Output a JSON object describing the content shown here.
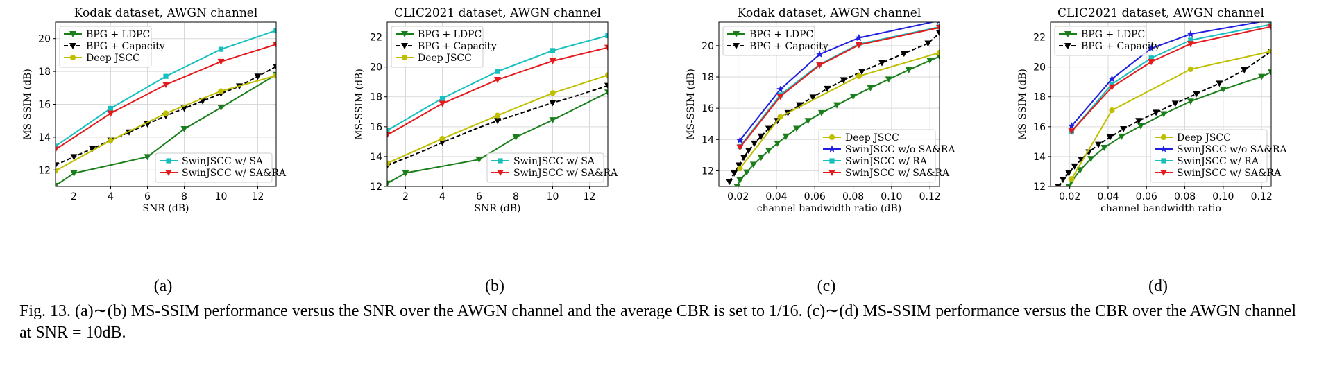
{
  "figure": {
    "caption": "Fig. 13.  (a)∼(b) MS-SSIM performance versus the SNR over the AWGN channel and the average CBR is set to 1/16. (c)∼(d) MS-SSIM performance versus the CBR over the AWGN channel at SNR = 10dB."
  },
  "colors": {
    "bpg_ldpc": "#1a7f1a",
    "bpg_capacity": "#000000",
    "deep_jscc": "#bfbf00",
    "swin_sa": "#17bfbf",
    "swin_sara": "#e41a1c",
    "swin_nosara": "#1f1fe0",
    "swin_ra": "#17bfbf"
  },
  "chart_data": [
    {
      "type": "line",
      "panel_label": "(a)",
      "title": "Kodak dataset, AWGN channel",
      "xlabel": "SNR (dB)",
      "ylabel": "MS-SSIM (dB)",
      "xlim": [
        1,
        13
      ],
      "ylim": [
        11,
        21
      ],
      "xticks": [
        2,
        4,
        6,
        8,
        10,
        12
      ],
      "yticks": [
        12,
        14,
        16,
        18,
        20
      ],
      "grid": true,
      "legend": [
        {
          "position": "upper-left",
          "entries": [
            "BPG + LDPC",
            "BPG + Capacity",
            "Deep JSCC"
          ]
        },
        {
          "position": "lower-right",
          "entries": [
            "SwinJSCC w/ SA",
            "SwinJSCC w/ SA&RA"
          ]
        }
      ],
      "series": [
        {
          "name": "BPG + LDPC",
          "color_key": "bpg_ldpc",
          "marker": "tri_down",
          "dash": false,
          "markevery": 1,
          "x": [
            1,
            2,
            6,
            8,
            10,
            13
          ],
          "y": [
            11.05,
            11.8,
            12.8,
            14.5,
            15.8,
            17.8
          ]
        },
        {
          "name": "BPG + Capacity",
          "color_key": "bpg_capacity",
          "marker": "tri_down",
          "dash": true,
          "markevery": 1,
          "x": [
            1,
            2,
            3,
            4,
            5,
            6,
            7,
            8,
            9,
            10,
            11,
            12,
            13
          ],
          "y": [
            12.3,
            12.8,
            13.3,
            13.8,
            14.3,
            14.8,
            15.3,
            15.75,
            16.2,
            16.65,
            17.1,
            17.7,
            18.3
          ]
        },
        {
          "name": "Deep JSCC",
          "color_key": "deep_jscc",
          "marker": "circle",
          "dash": false,
          "markevery": 1,
          "x": [
            1,
            4,
            7,
            10,
            13
          ],
          "y": [
            11.95,
            13.8,
            15.45,
            16.8,
            17.75
          ]
        },
        {
          "name": "SwinJSCC w/ SA",
          "color_key": "swin_sa",
          "marker": "square",
          "dash": false,
          "markevery": 1,
          "x": [
            1,
            4,
            7,
            10,
            13
          ],
          "y": [
            13.45,
            15.75,
            17.7,
            19.35,
            20.5
          ]
        },
        {
          "name": "SwinJSCC w/ SA&RA",
          "color_key": "swin_sara",
          "marker": "tri_down",
          "dash": false,
          "markevery": 1,
          "x": [
            1,
            4,
            7,
            10,
            13
          ],
          "y": [
            13.25,
            15.45,
            17.2,
            18.6,
            19.65
          ]
        }
      ]
    },
    {
      "type": "line",
      "panel_label": "(b)",
      "title": "CLIC2021 dataset, AWGN channel",
      "xlabel": "SNR (dB)",
      "ylabel": "MS-SSIM (dB)",
      "xlim": [
        1,
        13
      ],
      "ylim": [
        12,
        23
      ],
      "xticks": [
        2,
        4,
        6,
        8,
        10,
        12
      ],
      "yticks": [
        12,
        14,
        16,
        18,
        20,
        22
      ],
      "grid": true,
      "legend": [
        {
          "position": "upper-left",
          "entries": [
            "BPG + LDPC",
            "BPG + Capacity",
            "Deep JSCC"
          ]
        },
        {
          "position": "lower-right",
          "entries": [
            "SwinJSCC w/ SA",
            "SwinJSCC w/ SA&RA"
          ]
        }
      ],
      "series": [
        {
          "name": "BPG + LDPC",
          "color_key": "bpg_ldpc",
          "marker": "tri_down",
          "dash": false,
          "markevery": 1,
          "x": [
            1,
            2,
            6,
            8,
            10,
            13
          ],
          "y": [
            12.2,
            12.9,
            13.8,
            15.3,
            16.45,
            18.3
          ]
        },
        {
          "name": "BPG + Capacity",
          "color_key": "bpg_capacity",
          "marker": "tri_down",
          "dash": true,
          "markevery": 3,
          "x": [
            1,
            2,
            3,
            4,
            5,
            6,
            7,
            8,
            9,
            10,
            11,
            12,
            13
          ],
          "y": [
            13.4,
            13.9,
            14.4,
            14.95,
            15.45,
            15.95,
            16.4,
            16.8,
            17.2,
            17.6,
            17.95,
            18.35,
            18.75
          ]
        },
        {
          "name": "Deep JSCC",
          "color_key": "deep_jscc",
          "marker": "circle",
          "dash": false,
          "markevery": 1,
          "x": [
            1,
            4,
            7,
            10,
            13
          ],
          "y": [
            13.55,
            15.2,
            16.75,
            18.25,
            19.45
          ]
        },
        {
          "name": "SwinJSCC w/ SA",
          "color_key": "swin_sa",
          "marker": "square",
          "dash": false,
          "markevery": 1,
          "x": [
            1,
            4,
            7,
            10,
            13
          ],
          "y": [
            15.75,
            17.9,
            19.7,
            21.1,
            22.1
          ]
        },
        {
          "name": "SwinJSCC w/ SA&RA",
          "color_key": "swin_sara",
          "marker": "tri_down",
          "dash": false,
          "markevery": 1,
          "x": [
            1,
            4,
            7,
            10,
            13
          ],
          "y": [
            15.45,
            17.55,
            19.15,
            20.4,
            21.3
          ]
        }
      ]
    },
    {
      "type": "line",
      "panel_label": "(c)",
      "title": "Kodak dataset, AWGN channel",
      "xlabel": "channel bandwidth ratio (dB)",
      "ylabel": "MS-SSIM (dB)",
      "xlim": [
        0.01,
        0.125
      ],
      "ylim": [
        11,
        21.5
      ],
      "xticks": [
        0.02,
        0.04,
        0.06,
        0.08,
        0.1,
        0.12
      ],
      "xtick_labels": [
        "0.02",
        "0.04",
        "0.06",
        "0.08",
        "0.10",
        "0.12"
      ],
      "yticks": [
        12,
        14,
        16,
        18,
        20
      ],
      "grid": true,
      "legend": [
        {
          "position": "upper-left",
          "entries": [
            "BPG + LDPC",
            "BPG + Capacity"
          ]
        },
        {
          "position": "lower-right",
          "entries": [
            "Deep JSCC",
            "SwinJSCC w/o SA&RA",
            "SwinJSCC w/ RA",
            "SwinJSCC w/ SA&RA"
          ]
        }
      ],
      "series": [
        {
          "name": "BPG + LDPC",
          "color_key": "bpg_ldpc",
          "marker": "tri_down",
          "dash": false,
          "markevery": 1,
          "x": [
            0.0195,
            0.021,
            0.0245,
            0.028,
            0.032,
            0.036,
            0.0405,
            0.045,
            0.0505,
            0.0565,
            0.0635,
            0.0715,
            0.08,
            0.089,
            0.0985,
            0.109,
            0.12,
            0.125
          ],
          "y": [
            11.0,
            11.4,
            11.9,
            12.4,
            12.85,
            13.3,
            13.75,
            14.2,
            14.7,
            15.2,
            15.7,
            16.2,
            16.75,
            17.3,
            17.85,
            18.45,
            19.05,
            19.3
          ]
        },
        {
          "name": "BPG + Capacity",
          "color_key": "bpg_capacity",
          "marker": "tri_down",
          "dash": true,
          "markevery": 1,
          "x": [
            0.0155,
            0.018,
            0.0205,
            0.023,
            0.0255,
            0.0285,
            0.032,
            0.036,
            0.0405,
            0.046,
            0.052,
            0.059,
            0.0665,
            0.075,
            0.0845,
            0.095,
            0.1065,
            0.119,
            0.125
          ],
          "y": [
            11.3,
            11.85,
            12.35,
            12.85,
            13.3,
            13.75,
            14.2,
            14.7,
            15.2,
            15.7,
            16.2,
            16.7,
            17.25,
            17.8,
            18.35,
            18.9,
            19.5,
            20.15,
            20.8
          ]
        },
        {
          "name": "Deep JSCC",
          "color_key": "deep_jscc",
          "marker": "circle",
          "dash": false,
          "markevery": 1,
          "x": [
            0.021,
            0.042,
            0.083,
            0.125
          ],
          "y": [
            12.15,
            15.45,
            18.05,
            19.55
          ]
        },
        {
          "name": "SwinJSCC w/o SA&RA",
          "color_key": "swin_nosara",
          "marker": "star",
          "dash": false,
          "markevery": 1,
          "x": [
            0.021,
            0.042,
            0.0625,
            0.083,
            0.125
          ],
          "y": [
            13.95,
            17.2,
            19.45,
            20.5,
            21.6
          ]
        },
        {
          "name": "SwinJSCC w/ RA",
          "color_key": "swin_ra",
          "marker": "square",
          "dash": false,
          "markevery": 1,
          "x": [
            0.021,
            0.042,
            0.0625,
            0.083,
            0.125
          ],
          "y": [
            13.55,
            16.85,
            18.8,
            20.1,
            21.2
          ]
        },
        {
          "name": "SwinJSCC w/ SA&RA",
          "color_key": "swin_sara",
          "marker": "tri_down",
          "dash": false,
          "markevery": 1,
          "x": [
            0.021,
            0.042,
            0.0625,
            0.083,
            0.125
          ],
          "y": [
            13.5,
            16.75,
            18.75,
            20.05,
            21.15
          ]
        }
      ]
    },
    {
      "type": "line",
      "panel_label": "(d)",
      "title": "CLIC2021 dataset, AWGN channel",
      "xlabel": "channel bandwidth ratio",
      "ylabel": "MS-SSIM (dB)",
      "xlim": [
        0.01,
        0.125
      ],
      "ylim": [
        12,
        23
      ],
      "xticks": [
        0.02,
        0.04,
        0.06,
        0.08,
        0.1,
        0.12
      ],
      "xtick_labels": [
        "0.02",
        "0.04",
        "0.06",
        "0.08",
        "0.10",
        "0.12"
      ],
      "yticks": [
        12,
        14,
        16,
        18,
        20,
        22
      ],
      "grid": true,
      "legend": [
        {
          "position": "upper-left",
          "entries": [
            "BPG + LDPC",
            "BPG + Capacity"
          ]
        },
        {
          "position": "lower-right",
          "entries": [
            "Deep JSCC",
            "SwinJSCC w/o SA&RA",
            "SwinJSCC w/ RA",
            "SwinJSCC w/ SA&RA"
          ]
        }
      ],
      "series": [
        {
          "name": "BPG + LDPC",
          "color_key": "bpg_ldpc",
          "marker": "tri_down",
          "dash": false,
          "markevery": 1,
          "x": [
            0.0195,
            0.021,
            0.0255,
            0.031,
            0.038,
            0.047,
            0.057,
            0.069,
            0.083,
            0.1,
            0.12,
            0.125
          ],
          "y": [
            12.0,
            12.35,
            13.1,
            13.85,
            14.6,
            15.35,
            16.05,
            16.85,
            17.7,
            18.5,
            19.35,
            19.65
          ]
        },
        {
          "name": "BPG + Capacity",
          "color_key": "bpg_capacity",
          "marker": "tri_down",
          "dash": true,
          "markevery": 1,
          "x": [
            0.014,
            0.0165,
            0.0195,
            0.0225,
            0.026,
            0.03,
            0.035,
            0.041,
            0.048,
            0.056,
            0.065,
            0.075,
            0.086,
            0.098,
            0.111,
            0.125
          ],
          "y": [
            12.0,
            12.45,
            12.9,
            13.35,
            13.8,
            14.3,
            14.8,
            15.3,
            15.85,
            16.4,
            16.95,
            17.55,
            18.2,
            18.9,
            19.8,
            21.05
          ]
        },
        {
          "name": "Deep JSCC",
          "color_key": "deep_jscc",
          "marker": "circle",
          "dash": false,
          "markevery": 1,
          "x": [
            0.021,
            0.042,
            0.083,
            0.125
          ],
          "y": [
            12.5,
            17.1,
            19.85,
            21.05
          ]
        },
        {
          "name": "SwinJSCC w/o SA&RA",
          "color_key": "swin_nosara",
          "marker": "star",
          "dash": false,
          "markevery": 1,
          "x": [
            0.021,
            0.042,
            0.0625,
            0.083,
            0.125
          ],
          "y": [
            16.05,
            19.2,
            21.25,
            22.2,
            23.15
          ]
        },
        {
          "name": "SwinJSCC w/ RA",
          "color_key": "swin_ra",
          "marker": "square",
          "dash": false,
          "markevery": 1,
          "x": [
            0.021,
            0.042,
            0.0625,
            0.083,
            0.125
          ],
          "y": [
            15.7,
            18.85,
            20.6,
            21.8,
            22.85
          ]
        },
        {
          "name": "SwinJSCC w/ SA&RA",
          "color_key": "swin_sara",
          "marker": "tri_down",
          "dash": false,
          "markevery": 1,
          "x": [
            0.021,
            0.042,
            0.0625,
            0.083,
            0.125
          ],
          "y": [
            15.7,
            18.65,
            20.35,
            21.55,
            22.7
          ]
        }
      ]
    }
  ]
}
